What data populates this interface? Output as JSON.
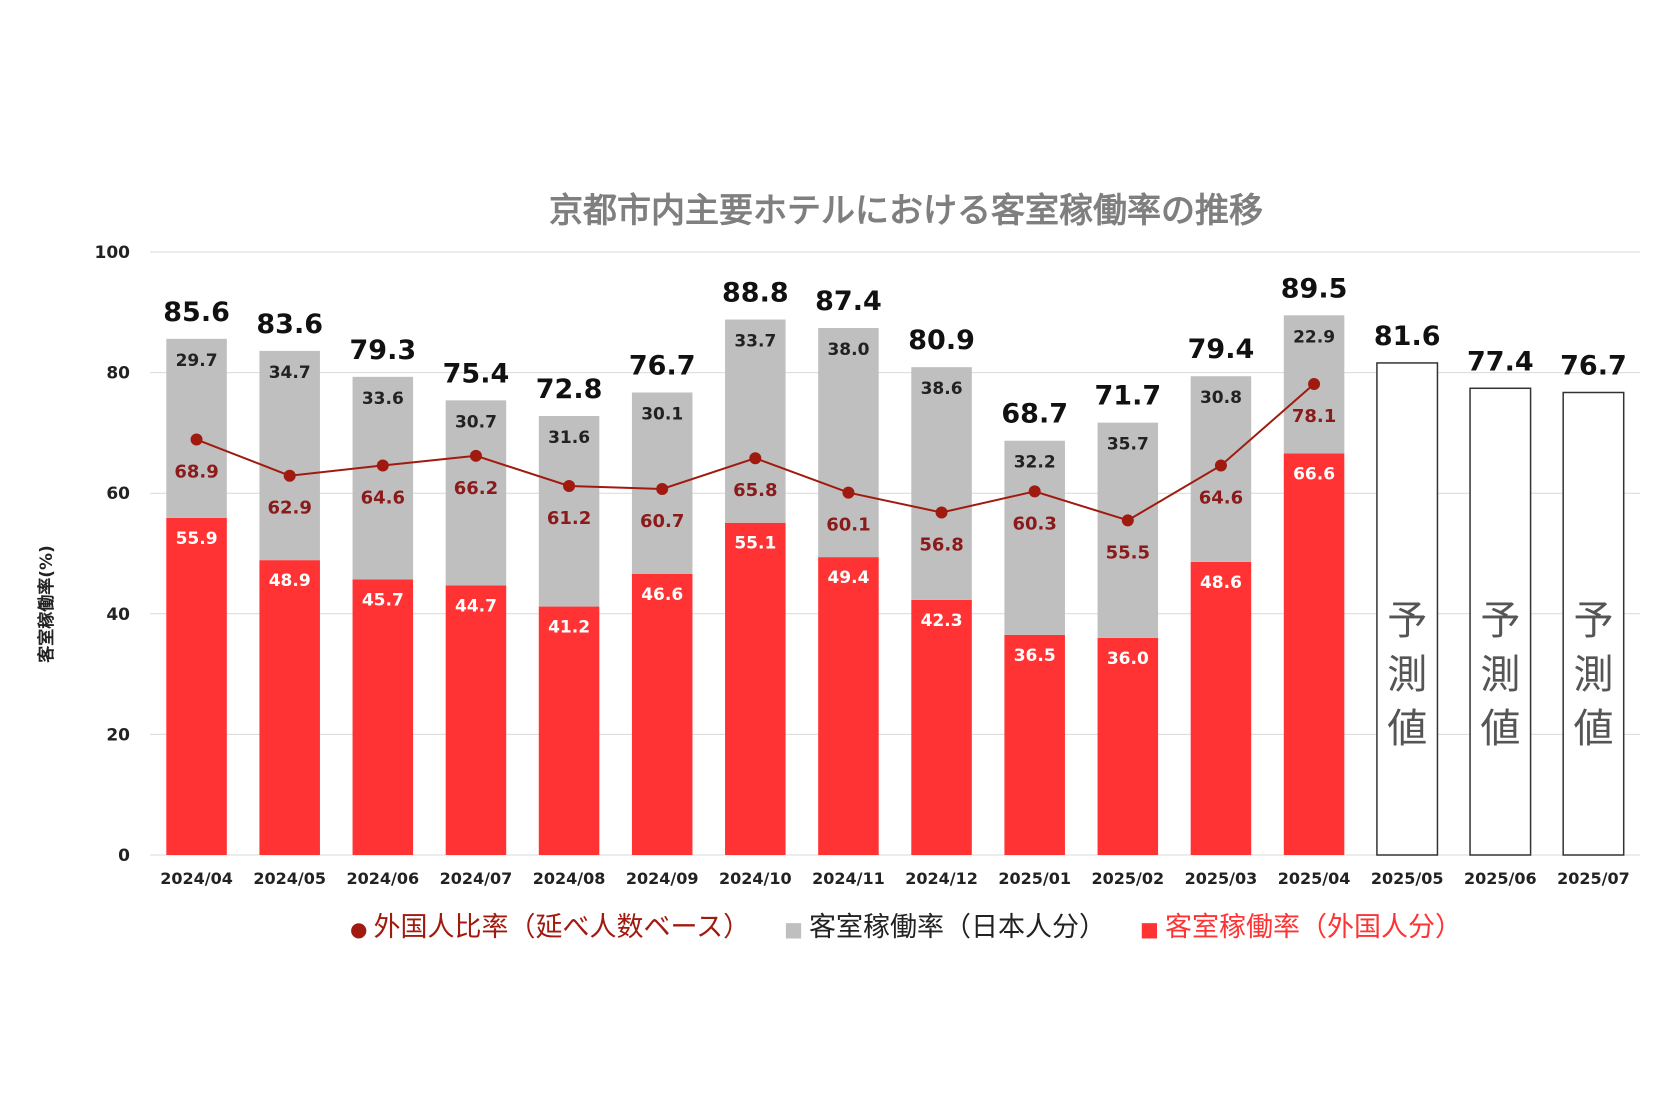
{
  "chart_data": {
    "type": "bar",
    "title": "京都市内主要ホテルにおける客室稼働率の推移",
    "ylabel": "客室稼働率(%)",
    "ylim": [
      0,
      100
    ],
    "yticks": [
      "0",
      "20",
      "40",
      "60",
      "80",
      "100"
    ],
    "grid": true,
    "legend_position": "bottom",
    "categories": [
      "2024/04",
      "2024/05",
      "2024/06",
      "2024/07",
      "2024/08",
      "2024/09",
      "2024/10",
      "2024/11",
      "2024/12",
      "2025/01",
      "2025/02",
      "2025/03",
      "2025/04",
      "2025/05",
      "2025/06",
      "2025/07"
    ],
    "totals": [
      "85.6",
      "83.6",
      "79.3",
      "75.4",
      "72.8",
      "76.7",
      "88.8",
      "87.4",
      "80.9",
      "68.7",
      "71.7",
      "79.4",
      "89.5",
      "81.6",
      "77.4",
      "76.7"
    ],
    "series": [
      {
        "name": "客室稼働率（外国人分）",
        "type": "bar",
        "color": "#ff3333",
        "values": [
          55.9,
          48.9,
          45.7,
          44.7,
          41.2,
          46.6,
          55.1,
          49.4,
          42.3,
          36.5,
          36.0,
          48.6,
          66.6,
          null,
          null,
          null
        ]
      },
      {
        "name": "客室稼働率（日本人分）",
        "type": "bar",
        "color": "#bfbfbf",
        "values": [
          29.7,
          34.7,
          33.6,
          30.7,
          31.6,
          30.1,
          33.7,
          38.0,
          38.6,
          32.2,
          35.7,
          30.8,
          22.9,
          null,
          null,
          null
        ]
      },
      {
        "name": "外国人比率（延べ人数ベース）",
        "type": "line",
        "color": "#a01a0f",
        "values": [
          68.9,
          62.9,
          64.6,
          66.2,
          61.2,
          60.7,
          65.8,
          60.1,
          56.8,
          60.3,
          55.5,
          64.6,
          78.1,
          null,
          null,
          null
        ]
      }
    ],
    "forecast": {
      "label": "予測値",
      "values": [
        null,
        null,
        null,
        null,
        null,
        null,
        null,
        null,
        null,
        null,
        null,
        null,
        null,
        81.6,
        77.4,
        76.7
      ]
    },
    "legend": [
      {
        "marker": "●",
        "label": "外国人比率（延べ人数ベース）",
        "color": "#a01a0f"
      },
      {
        "marker": "■",
        "label": "客室稼働率（日本人分）",
        "color": "#bfbfbf",
        "text_color": "#222222"
      },
      {
        "marker": "■",
        "label": "客室稼働率（外国人分）",
        "color": "#ff3333"
      }
    ]
  }
}
